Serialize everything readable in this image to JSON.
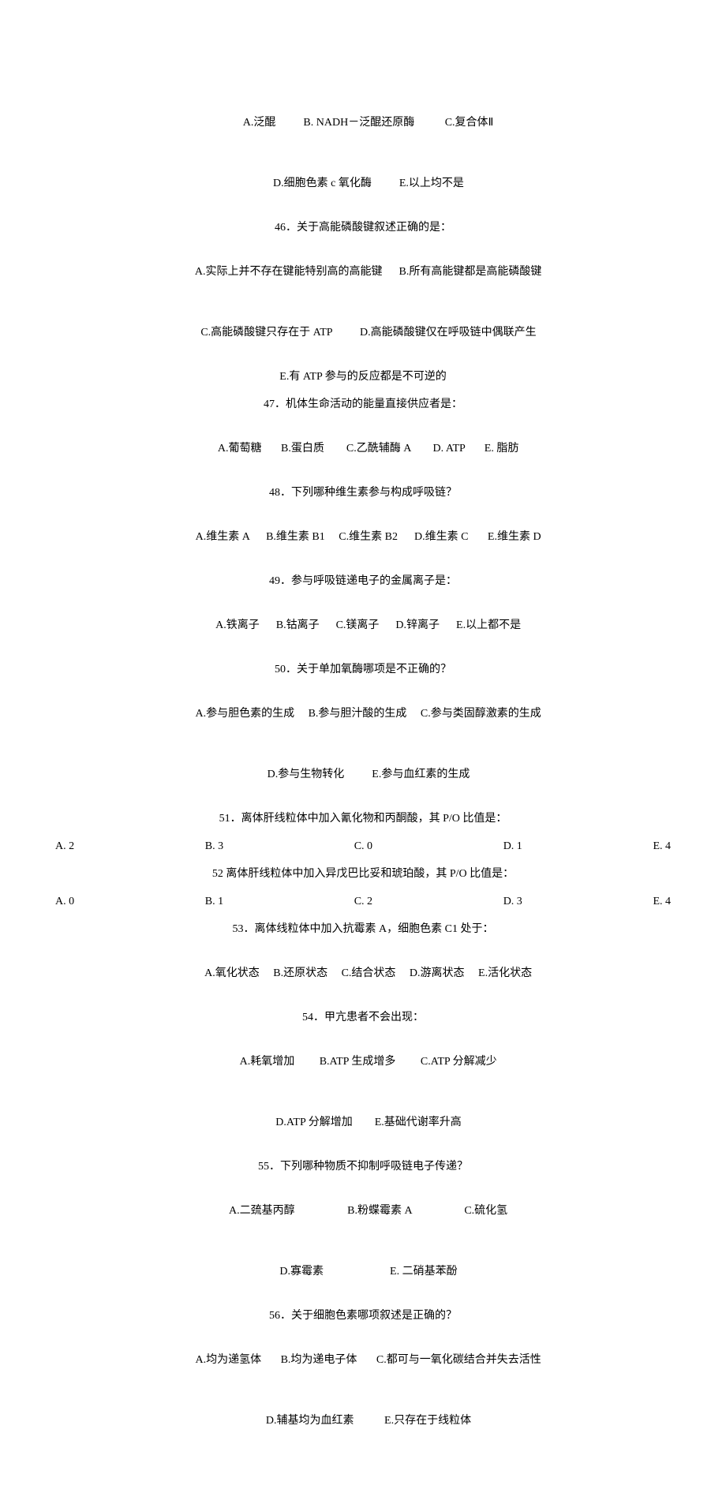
{
  "q45_opts1": {
    "a": "A.泛醌",
    "b": "B. NADH－泛醌还原酶",
    "c": "C.复合体Ⅱ"
  },
  "q45_opts2": {
    "d": "D.细胞色素 c 氧化酶",
    "e": "E.以上均不是"
  },
  "q46": {
    "stem": "46．关于高能磷酸键叙述正确的是：",
    "a": "A.实际上并不存在键能特别高的高能键",
    "b": "B.所有高能键都是高能磷酸键",
    "c": "C.高能磷酸键只存在于 ATP",
    "d": "D.高能磷酸键仅在呼吸链中偶联产生",
    "e": "E.有 ATP 参与的反应都是不可逆的"
  },
  "q47": {
    "stem": "47．机体生命活动的能量直接供应者是：",
    "a": "A.葡萄糖",
    "b": "B.蛋白质",
    "c": "C.乙酰辅酶 A",
    "d": "D. ATP",
    "e": "E. 脂肪"
  },
  "q48": {
    "stem": "48．下列哪种维生素参与构成呼吸链？",
    "a": "A.维生素 A",
    "b": "B.维生素 B1",
    "c": "C.维生素 B2",
    "d": "D.维生素 C",
    "e": "E.维生素 D"
  },
  "q49": {
    "stem": "49．参与呼吸链递电子的金属离子是：",
    "a": "A.铁离子",
    "b": "B.钴离子",
    "c": "C.镁离子",
    "d": "D.锌离子",
    "e": "E.以上都不是"
  },
  "q50": {
    "stem": "50．关于单加氧酶哪项是不正确的？",
    "a": "A.参与胆色素的生成",
    "b": "B.参与胆汁酸的生成",
    "c": "C.参与类固醇激素的生成",
    "d": "D.参与生物转化",
    "e": "E.参与血红素的生成"
  },
  "q51": {
    "stem": "51．离体肝线粒体中加入氰化物和丙酮酸，其 P/O 比值是：",
    "a": "A.   2",
    "b": "B.   3",
    "c": "C.   0",
    "d": "D.   1",
    "e": "E.   4"
  },
  "q52": {
    "stem": "52 离体肝线粒体中加入异戊巴比妥和琥珀酸，其 P/O 比值是：",
    "a": "A.   0",
    "b": "B.   1",
    "c": "C.   2",
    "d": "D.   3",
    "e": "E.   4"
  },
  "q53": {
    "stem": "53．离体线粒体中加入抗霉素 A，细胞色素 C1 处于：",
    "a": "A.氧化状态",
    "b": "B.还原状态",
    "c": "C.结合状态",
    "d": "D.游离状态",
    "e": "E.活化状态"
  },
  "q54": {
    "stem": "54．甲亢患者不会出现：",
    "a": "A.耗氧增加",
    "b": "B.ATP 生成增多",
    "c": "C.ATP 分解减少",
    "d": "D.ATP 分解增加",
    "e": "E.基础代谢率升高"
  },
  "q55": {
    "stem": "55．下列哪种物质不抑制呼吸链电子传递？",
    "a": "A.二巯基丙醇",
    "b": "B.粉蝶霉素 A",
    "c": "C.硫化氢",
    "d": "D.寡霉素",
    "e": "E. 二硝基苯酚"
  },
  "q56": {
    "stem": "56．关于细胞色素哪项叙述是正确的？",
    "a": "A.均为递氢体",
    "b": "B.均为递电子体",
    "c": "C.都可与一氧化碳结合并失去活性",
    "d": "D.辅基均为血红素",
    "e": "E.只存在于线粒体"
  }
}
